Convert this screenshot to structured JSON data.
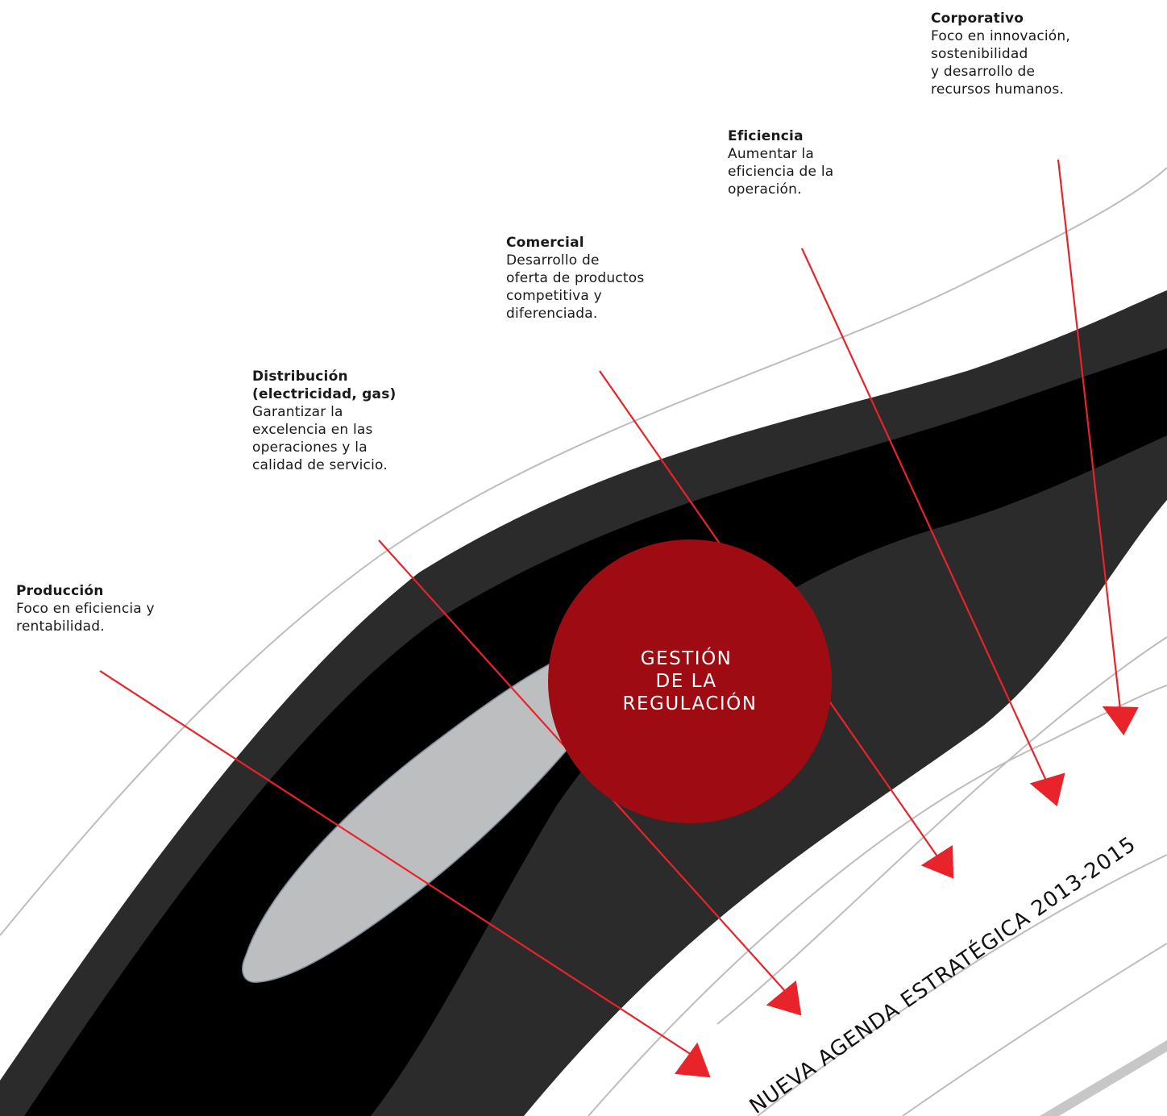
{
  "diagram": {
    "center_label": [
      "GESTIÓN",
      "DE LA",
      "REGULACIÓN"
    ],
    "agenda_label": "NUEVA AGENDA ESTRATÉGICA 2013-2015",
    "items": [
      {
        "id": "produccion",
        "title": "Producción",
        "description": "Foco en eficiencia y\nrentabilidad."
      },
      {
        "id": "distribucion",
        "title": "Distribución\n(electricidad, gas)",
        "description": "Garantizar la\nexcelencia en las\noperaciones y la\ncalidad de servicio."
      },
      {
        "id": "comercial",
        "title": "Comercial",
        "description": "Desarrollo de\noferta de productos\ncompetitiva y\ndiferenciada."
      },
      {
        "id": "eficiencia",
        "title": "Eficiencia",
        "description": "Aumentar la\neficiencia de la\noperación."
      },
      {
        "id": "corporativo",
        "title": "Corporativo",
        "description": "Foco en innovación,\nsostenibilidad\ny desarrollo de\nrecursos humanos."
      }
    ],
    "colors": {
      "arrow": "#e8232a",
      "circle": "#9e0b12",
      "band_dark": "#2b2b2b",
      "band_black": "#000000",
      "band_light": "#bcbec0",
      "guide_lines": "#bdbdbd"
    }
  }
}
